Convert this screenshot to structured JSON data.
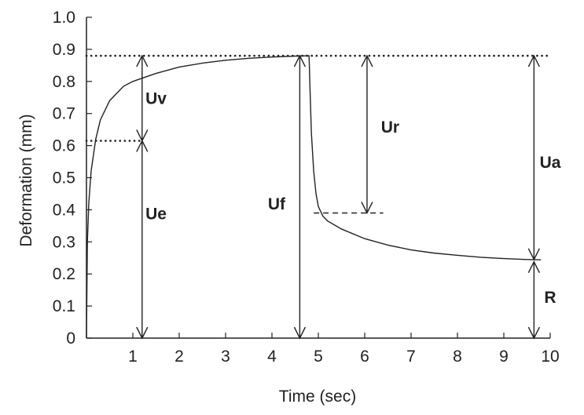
{
  "chart_data": {
    "type": "line",
    "xlabel": "Time (sec)",
    "ylabel": "Deformation (mm)",
    "xlim": [
      0,
      10
    ],
    "ylim": [
      0,
      1.0
    ],
    "x_ticks": [
      1,
      2,
      3,
      4,
      5,
      6,
      7,
      8,
      9,
      10
    ],
    "x_tick_labels": [
      "1",
      "2",
      "3",
      "4",
      "5",
      "6",
      "7",
      "8",
      "9",
      "10"
    ],
    "y_ticks": [
      0,
      0.1,
      0.2,
      0.3,
      0.4,
      0.5,
      0.6,
      0.7,
      0.8,
      0.9,
      1.0
    ],
    "y_tick_labels": [
      "0",
      "0.1",
      "0.2",
      "0.3",
      "0.4",
      "0.5",
      "0.6",
      "0.7",
      "0.8",
      "0.9",
      "1.0"
    ],
    "grid": false,
    "series": [
      {
        "x": [
          0,
          0.02,
          0.05,
          0.1,
          0.2,
          0.3,
          0.5,
          0.8,
          1.0,
          1.2,
          1.5,
          2.0,
          2.5,
          3.0,
          3.5,
          4.0,
          4.5,
          4.8,
          4.82,
          4.85,
          4.9,
          4.95,
          5.0,
          5.1,
          5.2,
          5.5,
          6.0,
          6.5,
          7.0,
          7.5,
          8.0,
          8.5,
          9.0,
          9.5,
          9.8
        ],
        "y": [
          0,
          0.3,
          0.42,
          0.52,
          0.62,
          0.68,
          0.74,
          0.785,
          0.8,
          0.81,
          0.825,
          0.845,
          0.857,
          0.866,
          0.872,
          0.876,
          0.879,
          0.88,
          0.78,
          0.64,
          0.52,
          0.45,
          0.41,
          0.38,
          0.365,
          0.34,
          0.31,
          0.29,
          0.275,
          0.265,
          0.258,
          0.252,
          0.248,
          0.245,
          0.244
        ]
      }
    ],
    "reference_lines": [
      {
        "style": "dotted",
        "y": 0.88,
        "x": [
          0,
          10
        ]
      },
      {
        "style": "dotted",
        "y": 0.615,
        "x": [
          0,
          1.2
        ]
      },
      {
        "style": "dashed",
        "y": 0.39,
        "x": [
          4.9,
          6.4
        ]
      }
    ],
    "annotations": [
      {
        "label": "Uv",
        "arrow_x": 1.2,
        "y_from": 0.615,
        "y_to": 0.88,
        "label_x": 1.5,
        "label_y": 0.75,
        "style": "double"
      },
      {
        "label": "Ue",
        "arrow_x": 1.2,
        "y_from": 0,
        "y_to": 0.615,
        "label_x": 1.5,
        "label_y": 0.39,
        "style": "double"
      },
      {
        "label": "Uf",
        "arrow_x": 4.6,
        "y_from": 0,
        "y_to": 0.88,
        "label_x": 4.1,
        "label_y": 0.42,
        "style": "double"
      },
      {
        "label": "Ur",
        "arrow_x": 6.05,
        "y_from": 0.39,
        "y_to": 0.88,
        "label_x": 6.55,
        "label_y": 0.66,
        "style": "double"
      },
      {
        "label": "Ua",
        "arrow_x": 9.65,
        "y_from": 0.245,
        "y_to": 0.88,
        "label_x": 10.0,
        "label_y": 0.55,
        "style": "double"
      },
      {
        "label": "R",
        "arrow_x": 9.65,
        "y_from": 0,
        "y_to": 0.238,
        "label_x": 10.0,
        "label_y": 0.13,
        "style": "double"
      }
    ]
  }
}
